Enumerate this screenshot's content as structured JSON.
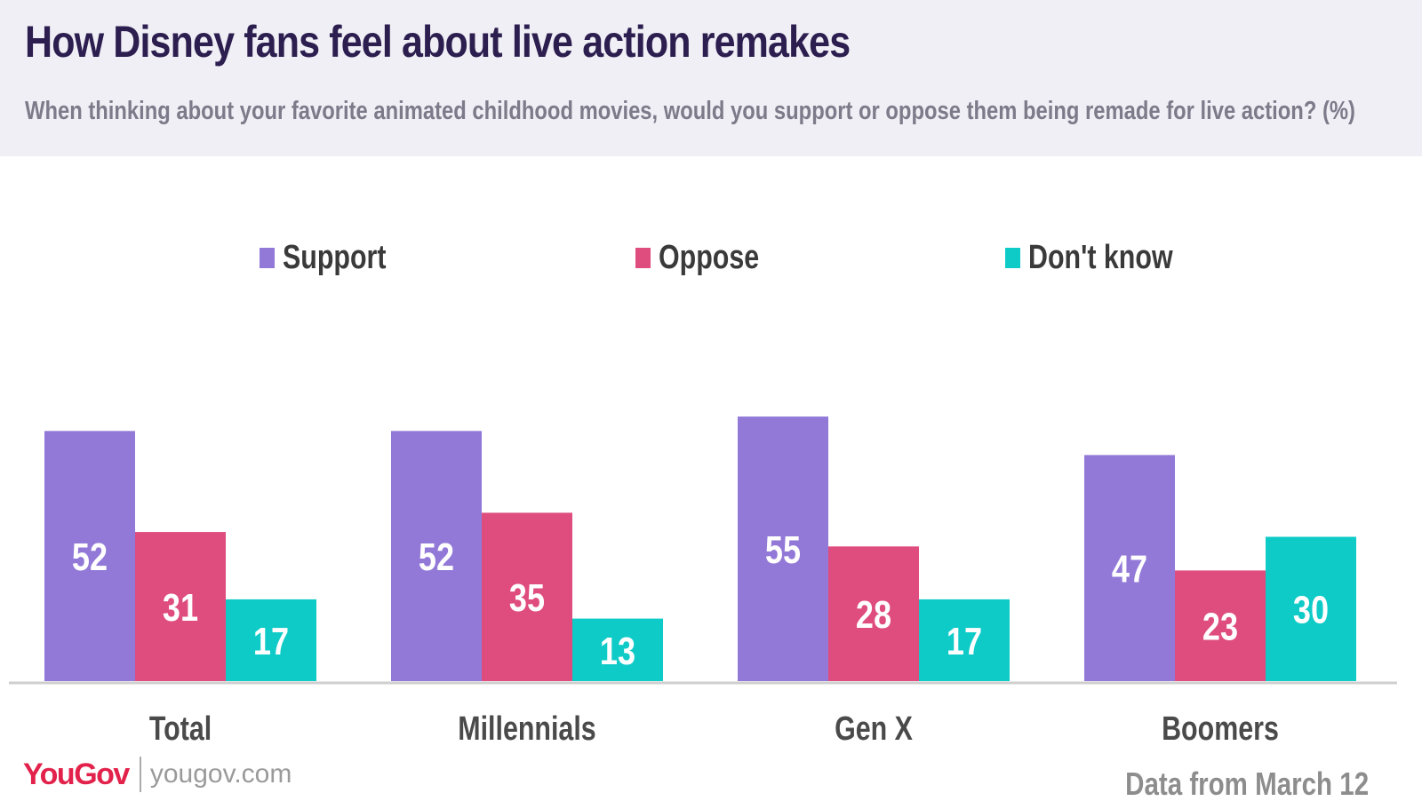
{
  "header": {
    "title": "How Disney fans feel about live action remakes",
    "subtitle": "When thinking about your favorite animated childhood movies, would you support or oppose them being remade for live action? (%)"
  },
  "legend": [
    {
      "label": "Support",
      "color": "#9279d8"
    },
    {
      "label": "Oppose",
      "color": "#df4c7e"
    },
    {
      "label": "Don't know",
      "color": "#0fcbc8"
    }
  ],
  "chart_data": {
    "type": "bar",
    "title": "How Disney fans feel about live action remakes",
    "subtitle": "When thinking about your favorite animated childhood movies, would you support or oppose them being remade for live action? (%)",
    "categories": [
      "Total",
      "Millennials",
      "Gen X",
      "Boomers"
    ],
    "series": [
      {
        "name": "Support",
        "values": [
          52,
          52,
          55,
          47
        ],
        "color": "#9279d8"
      },
      {
        "name": "Oppose",
        "values": [
          31,
          35,
          28,
          23
        ],
        "color": "#df4c7e"
      },
      {
        "name": "Don't know",
        "values": [
          17,
          13,
          17,
          30
        ],
        "color": "#0fcbc8"
      }
    ],
    "xlabel": "",
    "ylabel": "",
    "ylim": [
      0,
      60
    ],
    "grid": false,
    "legend_position": "top"
  },
  "footer": {
    "brand": "YouGov",
    "url": "yougov.com",
    "note": "Data from March 12"
  }
}
